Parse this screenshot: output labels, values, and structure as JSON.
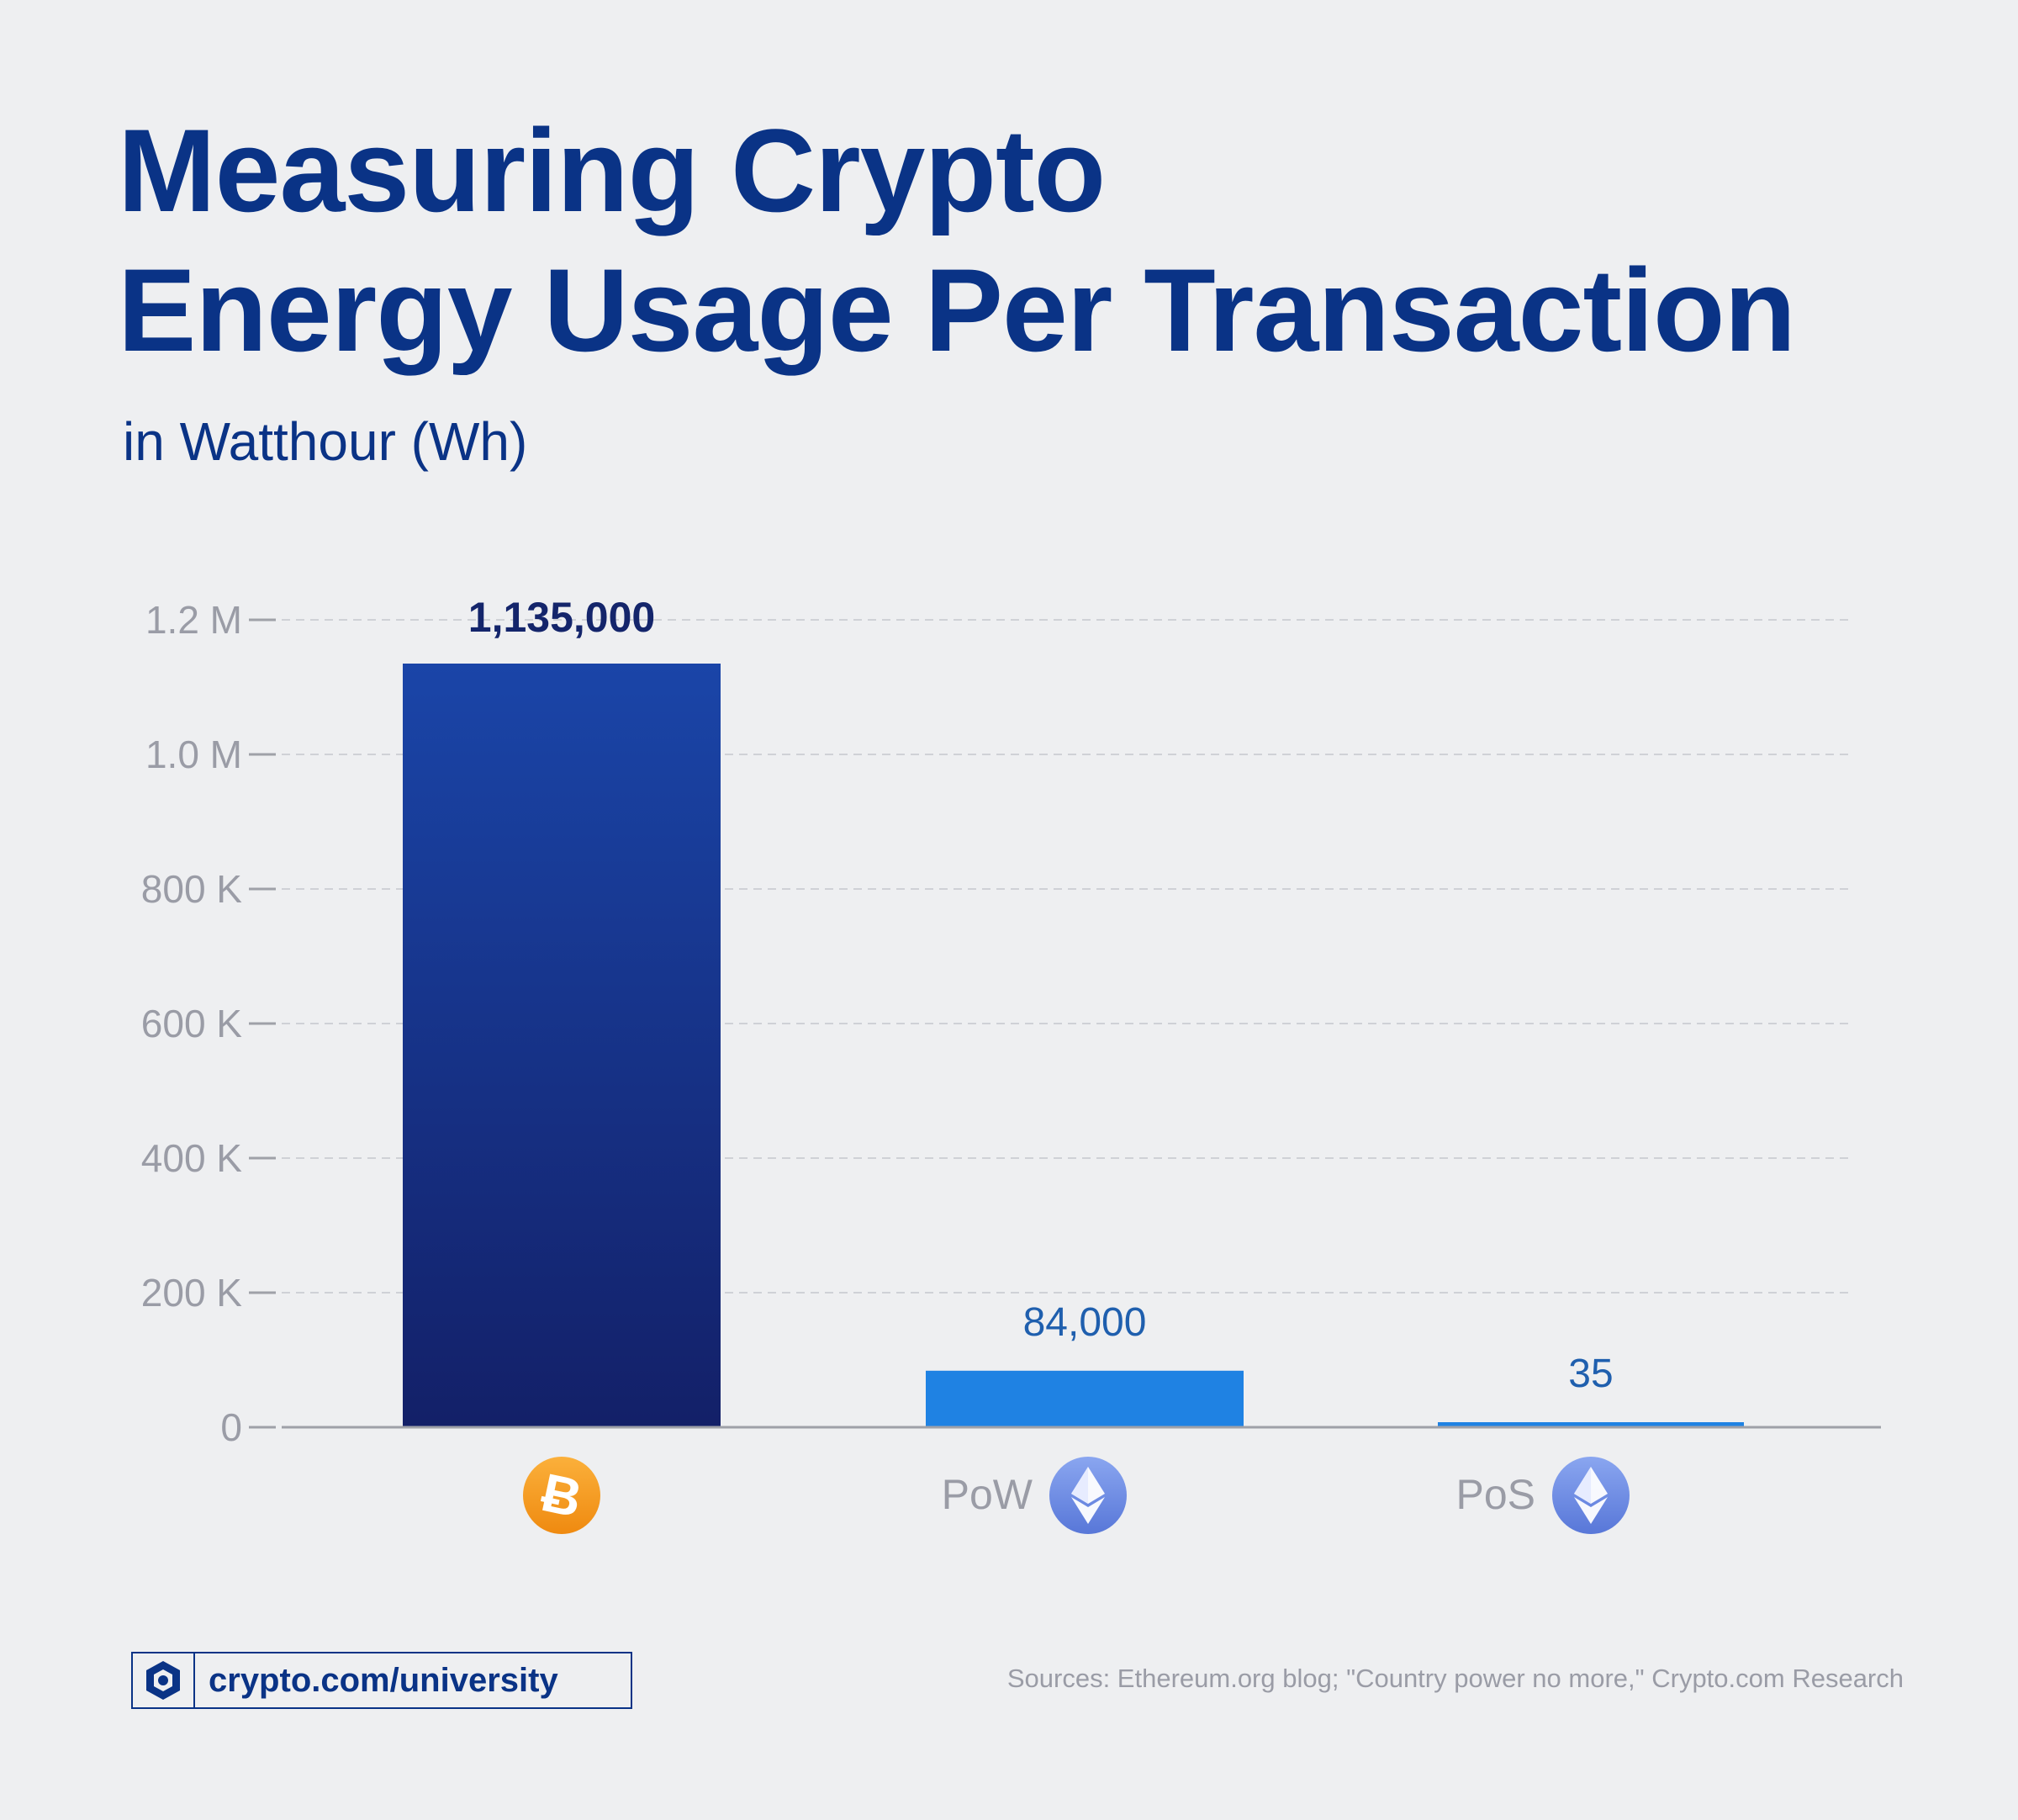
{
  "title_line1": "Measuring Crypto",
  "title_line2": "Energy Usage Per Transaction",
  "subtitle": "in Watthour (Wh)",
  "footer": {
    "brand": "crypto.com/university",
    "brand_icon": "lion-shield-icon",
    "sources": "Sources: Ethereum.org blog; \"Country power no more,\" Crypto.com Research"
  },
  "colors": {
    "title": "#0a3386",
    "bitcoin_bar_top": "#1a45a8",
    "bitcoin_bar_bottom": "#132068",
    "eth_bar": "#1f82e3",
    "eth_label": "#1f5fae",
    "axis_text": "#9a9ca6",
    "bitcoin_coin": "#f7931a",
    "eth_coin": "#6f8fe6"
  },
  "chart_data": {
    "type": "bar",
    "title": "Measuring Crypto Energy Usage Per Transaction",
    "ylabel": "in Watthour (Wh)",
    "xlabel": "",
    "ylim": [
      0,
      1200000
    ],
    "yticks": [
      0,
      200000,
      400000,
      600000,
      800000,
      1000000,
      1200000
    ],
    "ytick_labels": [
      "0",
      "200 K",
      "400 K",
      "600 K",
      "800 K",
      "1.0 M",
      "1.2 M"
    ],
    "grid": true,
    "categories": [
      {
        "label": "",
        "icon": "bitcoin-icon"
      },
      {
        "label": "PoW",
        "icon": "ethereum-icon"
      },
      {
        "label": "PoS",
        "icon": "ethereum-icon"
      }
    ],
    "values": [
      1135000,
      84000,
      35
    ],
    "value_labels": [
      "1,135,000",
      "84,000",
      "35"
    ]
  }
}
